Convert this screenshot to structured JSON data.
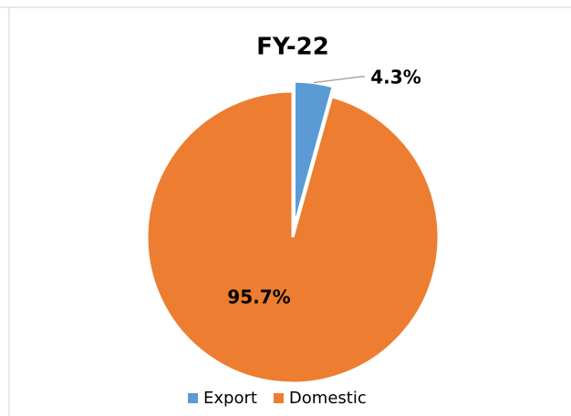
{
  "chart_data": {
    "type": "pie",
    "title": "FY-22",
    "categories": [
      "Export",
      "Domestic"
    ],
    "values": [
      4.3,
      95.7
    ],
    "value_labels": [
      "4.3%",
      "95.7%"
    ],
    "colors": [
      "#5b9bd5",
      "#ed7d31"
    ],
    "legend": "bottom"
  }
}
